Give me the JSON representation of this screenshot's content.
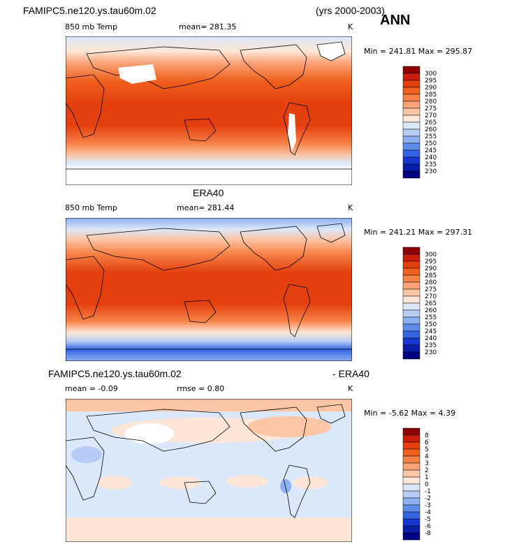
{
  "header": {
    "case_name": "FAMIPC5.ne120.ys.tau60m.02",
    "years": "(yrs 2000-2003)",
    "season": "ANN"
  },
  "panels": [
    {
      "id": "model",
      "title": "",
      "field": "850 mb Temp",
      "stat1": "mean= 281.35",
      "stat2": "",
      "units": "K",
      "minmax": "Min = 241.81 Max = 295.87"
    },
    {
      "id": "obs",
      "title": "ERA40",
      "field": "850 mb Temp",
      "stat1": "mean= 281.44",
      "stat2": "",
      "units": "K",
      "minmax": "Min = 241.21 Max = 297.31"
    },
    {
      "id": "diff",
      "title_left": "FAMIPC5.ne120.ys.tau60m.02",
      "title_right": "- ERA40",
      "field": "mean =  -0.09",
      "stat1": "rmse =   0.80",
      "units": "K",
      "minmax": "Min =  -5.62 Max =   4.39"
    }
  ],
  "colorbars": {
    "abs_levels": [
      "300",
      "295",
      "290",
      "285",
      "280",
      "275",
      "270",
      "265",
      "260",
      "255",
      "250",
      "245",
      "240",
      "235",
      "230"
    ],
    "diff_levels": [
      "8",
      "6",
      "5",
      "4",
      "3",
      "2",
      "1",
      "0",
      "-1",
      "-2",
      "-3",
      "-4",
      "-5",
      "-6",
      "-8"
    ],
    "colors": [
      "#8b0000",
      "#c81e0a",
      "#e4400f",
      "#f0601e",
      "#f68246",
      "#faa378",
      "#fcc6a6",
      "#fde6d6",
      "#dbe8fb",
      "#b7cdf6",
      "#8cb0f0",
      "#5d8ceb",
      "#3466e4",
      "#1638d0",
      "#0a1ca8",
      "#000080"
    ]
  },
  "chart_data": [
    {
      "type": "heatmap",
      "title": "FAMIPC5.ne120.ys.tau60m.02 850 mb Temp (yrs 2000-2003) ANN",
      "variable": "850 mb Temp",
      "units": "K",
      "mean": 281.35,
      "min": 241.81,
      "max": 295.87,
      "levels": [
        230,
        235,
        240,
        245,
        250,
        255,
        260,
        265,
        270,
        275,
        280,
        285,
        290,
        295,
        300
      ]
    },
    {
      "type": "heatmap",
      "title": "ERA40 850 mb Temp",
      "variable": "850 mb Temp",
      "units": "K",
      "mean": 281.44,
      "min": 241.21,
      "max": 297.31,
      "levels": [
        230,
        235,
        240,
        245,
        250,
        255,
        260,
        265,
        270,
        275,
        280,
        285,
        290,
        295,
        300
      ]
    },
    {
      "type": "heatmap",
      "title": "FAMIPC5.ne120.ys.tau60m.02 - ERA40",
      "units": "K",
      "mean": -0.09,
      "rmse": 0.8,
      "min": -5.62,
      "max": 4.39,
      "levels": [
        -8,
        -6,
        -5,
        -4,
        -3,
        -2,
        -1,
        0,
        1,
        2,
        3,
        4,
        5,
        6,
        8
      ]
    }
  ]
}
